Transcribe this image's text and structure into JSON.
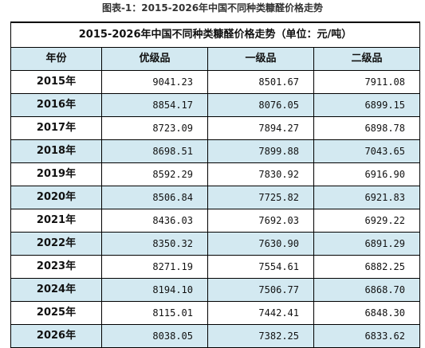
{
  "caption": "图表-1：2015-2026年中国不同种类糠醛价格走势",
  "table": {
    "title": "2015-2026年中国不同种类糠醛价格走势（单位：元/吨）",
    "headers": [
      "年份",
      "优级品",
      "一级品",
      "二级品"
    ],
    "rows": [
      {
        "year": "2015年",
        "premium": "9041.23",
        "first": "8501.67",
        "second": "7911.08"
      },
      {
        "year": "2016年",
        "premium": "8854.17",
        "first": "8076.05",
        "second": "6899.15"
      },
      {
        "year": "2017年",
        "premium": "8723.09",
        "first": "7894.27",
        "second": "6898.78"
      },
      {
        "year": "2018年",
        "premium": "8698.51",
        "first": "7899.88",
        "second": "7043.65"
      },
      {
        "year": "2019年",
        "premium": "8592.29",
        "first": "7830.92",
        "second": "6916.90"
      },
      {
        "year": "2020年",
        "premium": "8506.84",
        "first": "7725.82",
        "second": "6921.83"
      },
      {
        "year": "2021年",
        "premium": "8436.03",
        "first": "7692.03",
        "second": "6929.22"
      },
      {
        "year": "2022年",
        "premium": "8350.32",
        "first": "7630.90",
        "second": "6891.29"
      },
      {
        "year": "2023年",
        "premium": "8271.19",
        "first": "7554.61",
        "second": "6882.25"
      },
      {
        "year": "2024年",
        "premium": "8194.10",
        "first": "7506.77",
        "second": "6868.70"
      },
      {
        "year": "2025年",
        "premium": "8115.01",
        "first": "7442.41",
        "second": "6848.30"
      },
      {
        "year": "2026年",
        "premium": "8038.05",
        "first": "7382.25",
        "second": "6833.62"
      }
    ]
  },
  "colors": {
    "band": "#d3e9f1",
    "border": "#000000"
  }
}
